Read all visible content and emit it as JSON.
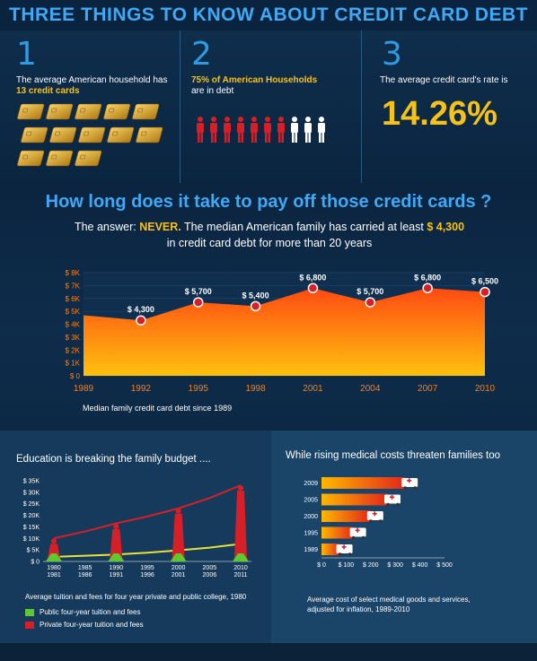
{
  "title": "THREE THINGS TO KNOW ABOUT CREDIT CARD DEBT",
  "facts": [
    {
      "num": "1",
      "text": "The average American household has",
      "highlight": "13 credit cards"
    },
    {
      "num": "2",
      "highlight": "75% of American Households",
      "text": "are in debt"
    },
    {
      "num": "3",
      "text": "The average credit card's rate is",
      "value": "14.26%"
    }
  ],
  "colors": {
    "accent_blue": "#3fa9f5",
    "yellow": "#f6c21a",
    "red": "#d61f26",
    "orange": "#f5821f",
    "green": "#5ec82e"
  },
  "payoff": {
    "question": "How long does it take to pay off those credit cards ?",
    "answer_prefix": "The answer:",
    "answer_never": "NEVER.",
    "answer_mid": "The median American family has carried at least",
    "answer_amount": "$ 4,300",
    "answer_end": "in credit card debt for more than 20 years"
  },
  "chart_data": [
    {
      "type": "area",
      "x": [
        "1989",
        "1992",
        "1995",
        "1998",
        "2001",
        "2004",
        "2007",
        "2010"
      ],
      "values": [
        4700,
        4300,
        5700,
        5400,
        6800,
        5700,
        6800,
        6500
      ],
      "data_labels": [
        "",
        "$ 4,300",
        "$ 5,700",
        "$ 5,400",
        "$ 6,800",
        "$ 5,700",
        "$ 6,800",
        "$ 6,500"
      ],
      "yticks": [
        "$ 0",
        "$ 1K",
        "$ 2K",
        "$ 3K",
        "$ 4K",
        "$ 5K",
        "$ 6K",
        "$ 7K",
        "$ 8K"
      ],
      "ylim": [
        0,
        8000
      ],
      "caption": "Median family credit card debt since 1989"
    },
    {
      "type": "line",
      "title": "Education is breaking the family budget ....",
      "x": [
        "1980 1981",
        "1985 1986",
        "1990 1991",
        "1995 1996",
        "2000 2001",
        "2005 2006",
        "2010 2011"
      ],
      "series": [
        {
          "name": "Public four-year tuition and fees",
          "values": [
            2000,
            2500,
            3000,
            3800,
            4800,
            6000,
            7600
          ]
        },
        {
          "name": "Private four-year tuition and fees",
          "values": [
            10000,
            13000,
            16500,
            19500,
            23000,
            27500,
            33000
          ]
        }
      ],
      "yticks": [
        "$ 0",
        "$ 5K",
        "$ 10K",
        "$ 15K",
        "$ 20K",
        "$ 25K",
        "$ 30K",
        "$ 35K"
      ],
      "ylim": [
        0,
        35000
      ],
      "caption": "Average tuition and fees for four year private and public college, 1980"
    },
    {
      "type": "bar",
      "title": "While rising medical costs threaten families too",
      "categories": [
        "2009",
        "2005",
        "2000",
        "1995",
        "1989"
      ],
      "values": [
        340,
        270,
        200,
        130,
        75
      ],
      "xticks": [
        "$ 0",
        "$ 100",
        "$ 200",
        "$ 300",
        "$ 400",
        "$ 500"
      ],
      "xlim": [
        0,
        500
      ],
      "caption": "Average cost of select medical goods and services, adjusted for inflation, 1989-2010"
    }
  ]
}
